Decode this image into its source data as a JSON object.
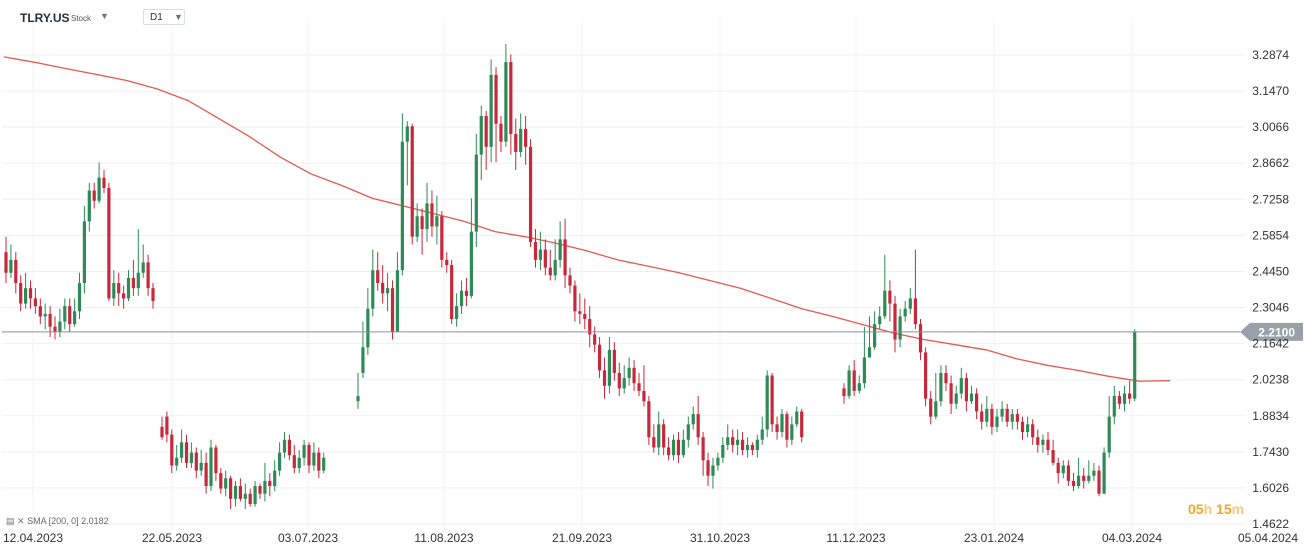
{
  "header": {
    "symbol": "TLRY.US",
    "symbol_type": "Stock",
    "timeframe": "D1"
  },
  "indicator": {
    "label": "SMA [200, 0] 2.0182"
  },
  "timer": {
    "hours": "05",
    "h": "h",
    "minutes": "15",
    "m": "m"
  },
  "chart_data": {
    "type": "candlestick",
    "y_ticks": [
      "3.2874",
      "3.1470",
      "3.0066",
      "2.8662",
      "2.7258",
      "2.5854",
      "2.4450",
      "2.3046",
      "2.1642",
      "2.0238",
      "1.8834",
      "1.7430",
      "1.6026",
      "1.4622"
    ],
    "x_ticks": [
      "12.04.2023",
      "22.05.2023",
      "03.07.2023",
      "11.08.2023",
      "21.09.2023",
      "31.10.2023",
      "11.12.2023",
      "23.01.2024",
      "04.03.2024",
      "05.04.2024"
    ],
    "ylim": [
      1.4622,
      3.2874
    ],
    "last_price": "2.2100",
    "last_price_value": 2.21,
    "colors": {
      "up": "#2e8b57",
      "down": "#c8283c",
      "sma": "#e25a50",
      "price_line": "#8a8f98",
      "price_tag": "#9aa0a8"
    },
    "sma": {
      "name": "SMA",
      "values": [
        3.28,
        3.259,
        3.235,
        3.212,
        3.188,
        3.155,
        3.11,
        3.04,
        2.97,
        2.89,
        2.825,
        2.78,
        2.73,
        2.7,
        2.67,
        2.64,
        2.6,
        2.58,
        2.555,
        2.525,
        2.49,
        2.465,
        2.44,
        2.41,
        2.38,
        2.34,
        2.3,
        2.27,
        2.238,
        2.205,
        2.18,
        2.16,
        2.14,
        2.105,
        2.08,
        2.06,
        2.037,
        2.018,
        2.02
      ]
    },
    "candles": [
      [
        2.52,
        2.44,
        2.58,
        2.4
      ],
      [
        2.44,
        2.49,
        2.55,
        2.42
      ],
      [
        2.49,
        2.4,
        2.52,
        2.36
      ],
      [
        2.4,
        2.32,
        2.43,
        2.29
      ],
      [
        2.32,
        2.38,
        2.44,
        2.3
      ],
      [
        2.38,
        2.34,
        2.41,
        2.3
      ],
      [
        2.34,
        2.31,
        2.38,
        2.28
      ],
      [
        2.31,
        2.27,
        2.34,
        2.24
      ],
      [
        2.27,
        2.28,
        2.32,
        2.22
      ],
      [
        2.28,
        2.23,
        2.31,
        2.19
      ],
      [
        2.23,
        2.21,
        2.27,
        2.18
      ],
      [
        2.21,
        2.25,
        2.3,
        2.19
      ],
      [
        2.25,
        2.31,
        2.34,
        2.22
      ],
      [
        2.31,
        2.24,
        2.34,
        2.21
      ],
      [
        2.24,
        2.29,
        2.34,
        2.23
      ],
      [
        2.29,
        2.4,
        2.44,
        2.26
      ],
      [
        2.4,
        2.64,
        2.7,
        2.36
      ],
      [
        2.64,
        2.76,
        2.79,
        2.6
      ],
      [
        2.76,
        2.72,
        2.79,
        2.69
      ],
      [
        2.72,
        2.81,
        2.87,
        2.71
      ],
      [
        2.81,
        2.77,
        2.84,
        2.75
      ],
      [
        2.77,
        2.34,
        2.79,
        2.33
      ],
      [
        2.34,
        2.4,
        2.45,
        2.31
      ],
      [
        2.4,
        2.36,
        2.44,
        2.31
      ],
      [
        2.36,
        2.34,
        2.39,
        2.3
      ],
      [
        2.34,
        2.42,
        2.45,
        2.33
      ],
      [
        2.42,
        2.38,
        2.49,
        2.35
      ],
      [
        2.38,
        2.44,
        2.61,
        2.35
      ],
      [
        2.44,
        2.48,
        2.55,
        2.42
      ],
      [
        2.48,
        2.38,
        2.51,
        2.35
      ],
      [
        2.38,
        2.33,
        2.4,
        2.3
      ],
      [
        1.84,
        1.8,
        1.88,
        1.79
      ],
      [
        1.88,
        1.81,
        1.9,
        1.78
      ],
      [
        1.81,
        1.69,
        1.83,
        1.66
      ],
      [
        1.69,
        1.72,
        1.77,
        1.67
      ],
      [
        1.72,
        1.78,
        1.83,
        1.7
      ],
      [
        1.78,
        1.7,
        1.81,
        1.68
      ],
      [
        1.7,
        1.74,
        1.78,
        1.68
      ],
      [
        1.74,
        1.67,
        1.76,
        1.64
      ],
      [
        1.67,
        1.7,
        1.75,
        1.65
      ],
      [
        1.7,
        1.61,
        1.74,
        1.58
      ],
      [
        1.61,
        1.76,
        1.79,
        1.59
      ],
      [
        1.76,
        1.66,
        1.77,
        1.63
      ],
      [
        1.66,
        1.6,
        1.68,
        1.58
      ],
      [
        1.6,
        1.64,
        1.67,
        1.57
      ],
      [
        1.64,
        1.56,
        1.65,
        1.52
      ],
      [
        1.56,
        1.61,
        1.63,
        1.53
      ],
      [
        1.61,
        1.56,
        1.64,
        1.55
      ],
      [
        1.56,
        1.58,
        1.62,
        1.52
      ],
      [
        1.58,
        1.54,
        1.6,
        1.53
      ],
      [
        1.54,
        1.61,
        1.63,
        1.53
      ],
      [
        1.61,
        1.58,
        1.62,
        1.56
      ],
      [
        1.58,
        1.63,
        1.7,
        1.55
      ],
      [
        1.63,
        1.61,
        1.66,
        1.57
      ],
      [
        1.61,
        1.67,
        1.71,
        1.59
      ],
      [
        1.67,
        1.74,
        1.78,
        1.65
      ],
      [
        1.74,
        1.79,
        1.82,
        1.72
      ],
      [
        1.79,
        1.73,
        1.81,
        1.71
      ],
      [
        1.73,
        1.68,
        1.77,
        1.66
      ],
      [
        1.68,
        1.72,
        1.75,
        1.66
      ],
      [
        1.72,
        1.77,
        1.79,
        1.69
      ],
      [
        1.77,
        1.69,
        1.78,
        1.66
      ],
      [
        1.69,
        1.74,
        1.78,
        1.67
      ],
      [
        1.74,
        1.67,
        1.76,
        1.64
      ],
      [
        1.67,
        1.72,
        1.74,
        1.66
      ],
      [
        1.94,
        1.96,
        2.05,
        1.91
      ],
      [
        2.05,
        2.15,
        2.25,
        2.03
      ],
      [
        2.15,
        2.3,
        2.38,
        2.12
      ],
      [
        2.3,
        2.45,
        2.53,
        2.27
      ],
      [
        2.45,
        2.4,
        2.52,
        2.37
      ],
      [
        2.4,
        2.36,
        2.47,
        2.32
      ],
      [
        2.36,
        2.38,
        2.44,
        2.29
      ],
      [
        2.38,
        2.21,
        2.41,
        2.18
      ],
      [
        2.21,
        2.45,
        2.52,
        2.43
      ],
      [
        2.45,
        2.95,
        3.06,
        2.43
      ],
      [
        2.95,
        3.01,
        3.03,
        2.78
      ],
      [
        3.01,
        2.58,
        3.02,
        2.55
      ],
      [
        2.58,
        2.66,
        2.71,
        2.56
      ],
      [
        2.66,
        2.61,
        2.69,
        2.51
      ],
      [
        2.61,
        2.71,
        2.79,
        2.56
      ],
      [
        2.71,
        2.62,
        2.76,
        2.58
      ],
      [
        2.62,
        2.66,
        2.74,
        2.55
      ],
      [
        2.66,
        2.49,
        2.68,
        2.46
      ],
      [
        2.49,
        2.47,
        2.52,
        2.44
      ],
      [
        2.47,
        2.26,
        2.49,
        2.24
      ],
      [
        2.26,
        2.31,
        2.36,
        2.23
      ],
      [
        2.31,
        2.37,
        2.41,
        2.28
      ],
      [
        2.37,
        2.35,
        2.42,
        2.31
      ],
      [
        2.35,
        2.6,
        2.73,
        2.34
      ],
      [
        2.6,
        2.9,
        2.98,
        2.54
      ],
      [
        2.9,
        3.05,
        3.09,
        2.8
      ],
      [
        3.05,
        2.93,
        3.07,
        2.84
      ],
      [
        2.93,
        3.21,
        3.27,
        2.87
      ],
      [
        3.21,
        3.02,
        3.24,
        2.87
      ],
      [
        3.02,
        2.95,
        3.05,
        2.91
      ],
      [
        2.95,
        3.26,
        3.33,
        2.93
      ],
      [
        3.26,
        2.98,
        3.29,
        2.9
      ],
      [
        2.98,
        2.91,
        3.04,
        2.84
      ],
      [
        2.91,
        3.0,
        3.06,
        2.89
      ],
      [
        3.0,
        2.93,
        3.05,
        2.86
      ],
      [
        2.93,
        2.56,
        2.96,
        2.54
      ],
      [
        2.56,
        2.49,
        2.61,
        2.46
      ],
      [
        2.49,
        2.53,
        2.6,
        2.45
      ],
      [
        2.53,
        2.46,
        2.57,
        2.43
      ],
      [
        2.46,
        2.43,
        2.53,
        2.41
      ],
      [
        2.43,
        2.49,
        2.57,
        2.41
      ],
      [
        2.49,
        2.57,
        2.64,
        2.46
      ],
      [
        2.57,
        2.43,
        2.65,
        2.38
      ],
      [
        2.43,
        2.39,
        2.46,
        2.36
      ],
      [
        2.39,
        2.29,
        2.41,
        2.25
      ],
      [
        2.29,
        2.28,
        2.36,
        2.24
      ],
      [
        2.28,
        2.26,
        2.34,
        2.22
      ],
      [
        2.26,
        2.2,
        2.31,
        2.15
      ],
      [
        2.2,
        2.16,
        2.23,
        2.13
      ],
      [
        2.16,
        2.06,
        2.19,
        2.03
      ],
      [
        2.06,
        2.0,
        2.11,
        1.95
      ],
      [
        2.0,
        2.14,
        2.19,
        1.97
      ],
      [
        2.14,
        2.05,
        2.17,
        2.02
      ],
      [
        2.05,
        1.99,
        2.09,
        1.96
      ],
      [
        1.99,
        2.03,
        2.08,
        1.97
      ],
      [
        2.03,
        2.07,
        2.11,
        2.0
      ],
      [
        2.07,
        2.01,
        2.1,
        1.98
      ],
      [
        2.01,
        1.98,
        2.05,
        1.96
      ],
      [
        1.98,
        1.94,
        2.08,
        1.92
      ],
      [
        1.94,
        1.8,
        1.96,
        1.77
      ],
      [
        1.8,
        1.76,
        1.85,
        1.74
      ],
      [
        1.76,
        1.85,
        1.9,
        1.73
      ],
      [
        1.85,
        1.76,
        1.87,
        1.73
      ],
      [
        1.76,
        1.73,
        1.8,
        1.71
      ],
      [
        1.73,
        1.79,
        1.81,
        1.71
      ],
      [
        1.79,
        1.73,
        1.82,
        1.7
      ],
      [
        1.73,
        1.79,
        1.83,
        1.72
      ],
      [
        1.79,
        1.85,
        1.88,
        1.76
      ],
      [
        1.85,
        1.89,
        1.92,
        1.83
      ],
      [
        1.89,
        1.8,
        1.96,
        1.77
      ],
      [
        1.8,
        1.71,
        1.82,
        1.65
      ],
      [
        1.71,
        1.65,
        1.74,
        1.61
      ],
      [
        1.65,
        1.69,
        1.72,
        1.6
      ],
      [
        1.69,
        1.72,
        1.74,
        1.67
      ],
      [
        1.72,
        1.77,
        1.8,
        1.7
      ],
      [
        1.77,
        1.8,
        1.85,
        1.75
      ],
      [
        1.8,
        1.77,
        1.83,
        1.74
      ],
      [
        1.77,
        1.79,
        1.83,
        1.73
      ],
      [
        1.79,
        1.75,
        1.82,
        1.73
      ],
      [
        1.75,
        1.77,
        1.8,
        1.72
      ],
      [
        1.77,
        1.75,
        1.78,
        1.73
      ],
      [
        1.75,
        1.79,
        1.81,
        1.72
      ],
      [
        1.79,
        1.83,
        1.88,
        1.77
      ],
      [
        1.83,
        2.04,
        2.06,
        1.8
      ],
      [
        2.04,
        1.85,
        2.05,
        1.82
      ],
      [
        1.85,
        1.82,
        1.88,
        1.79
      ],
      [
        1.82,
        1.89,
        1.91,
        1.8
      ],
      [
        1.89,
        1.79,
        1.9,
        1.76
      ],
      [
        1.79,
        1.85,
        1.88,
        1.77
      ],
      [
        1.85,
        1.9,
        1.92,
        1.84
      ],
      [
        1.9,
        1.8,
        1.91,
        1.78
      ],
      [
        1.99,
        1.96,
        2.01,
        1.93
      ],
      [
        1.96,
        2.06,
        2.08,
        1.95
      ],
      [
        2.06,
        1.98,
        2.1,
        1.96
      ],
      [
        1.98,
        2.01,
        2.04,
        1.97
      ],
      [
        2.01,
        2.11,
        2.23,
        1.99
      ],
      [
        2.11,
        2.15,
        2.27,
        2.13
      ],
      [
        2.15,
        2.24,
        2.29,
        2.14
      ],
      [
        2.24,
        2.27,
        2.31,
        2.22
      ],
      [
        2.27,
        2.37,
        2.51,
        2.26
      ],
      [
        2.37,
        2.32,
        2.41,
        2.25
      ],
      [
        2.32,
        2.18,
        2.35,
        2.13
      ],
      [
        2.18,
        2.27,
        2.3,
        2.15
      ],
      [
        2.27,
        2.3,
        2.33,
        2.25
      ],
      [
        2.3,
        2.34,
        2.38,
        2.28
      ],
      [
        2.34,
        2.24,
        2.53,
        2.22
      ],
      [
        2.24,
        2.13,
        2.26,
        2.1
      ],
      [
        2.13,
        1.95,
        2.15,
        1.92
      ],
      [
        1.95,
        1.88,
        1.98,
        1.85
      ],
      [
        1.88,
        1.94,
        2.05,
        1.87
      ],
      [
        1.94,
        2.05,
        2.08,
        1.92
      ],
      [
        2.05,
        2.01,
        2.08,
        1.98
      ],
      [
        2.01,
        1.93,
        2.04,
        1.89
      ],
      [
        1.93,
        1.97,
        2.0,
        1.91
      ],
      [
        1.97,
        2.03,
        2.07,
        1.95
      ],
      [
        2.03,
        1.94,
        2.05,
        1.9
      ],
      [
        1.94,
        1.97,
        2.0,
        1.93
      ],
      [
        1.97,
        1.9,
        1.99,
        1.87
      ],
      [
        1.9,
        1.86,
        1.93,
        1.83
      ],
      [
        1.86,
        1.91,
        1.96,
        1.84
      ],
      [
        1.91,
        1.84,
        1.93,
        1.81
      ],
      [
        1.84,
        1.88,
        1.91,
        1.82
      ],
      [
        1.88,
        1.91,
        1.94,
        1.86
      ],
      [
        1.91,
        1.86,
        1.93,
        1.84
      ],
      [
        1.86,
        1.89,
        1.91,
        1.83
      ],
      [
        1.89,
        1.86,
        1.91,
        1.83
      ],
      [
        1.86,
        1.82,
        1.88,
        1.79
      ],
      [
        1.82,
        1.85,
        1.88,
        1.8
      ],
      [
        1.85,
        1.8,
        1.87,
        1.77
      ],
      [
        1.8,
        1.77,
        1.83,
        1.74
      ],
      [
        1.77,
        1.79,
        1.81,
        1.74
      ],
      [
        1.79,
        1.75,
        1.82,
        1.73
      ],
      [
        1.75,
        1.7,
        1.79,
        1.69
      ],
      [
        1.7,
        1.66,
        1.72,
        1.62
      ],
      [
        1.66,
        1.69,
        1.71,
        1.64
      ],
      [
        1.69,
        1.63,
        1.71,
        1.61
      ],
      [
        1.63,
        1.61,
        1.66,
        1.59
      ],
      [
        1.61,
        1.65,
        1.72,
        1.6
      ],
      [
        1.65,
        1.63,
        1.68,
        1.6
      ],
      [
        1.63,
        1.65,
        1.71,
        1.62
      ],
      [
        1.65,
        1.67,
        1.7,
        1.63
      ],
      [
        1.67,
        1.58,
        1.69,
        1.57
      ],
      [
        1.58,
        1.74,
        1.76,
        1.58
      ],
      [
        1.74,
        1.88,
        1.96,
        1.72
      ],
      [
        1.88,
        1.96,
        2.0,
        1.85
      ],
      [
        1.96,
        1.93,
        1.98,
        1.91
      ],
      [
        1.93,
        1.97,
        2.0,
        1.9
      ],
      [
        1.97,
        1.95,
        2.02,
        1.93
      ],
      [
        1.95,
        2.21,
        2.22,
        1.94
      ]
    ]
  }
}
